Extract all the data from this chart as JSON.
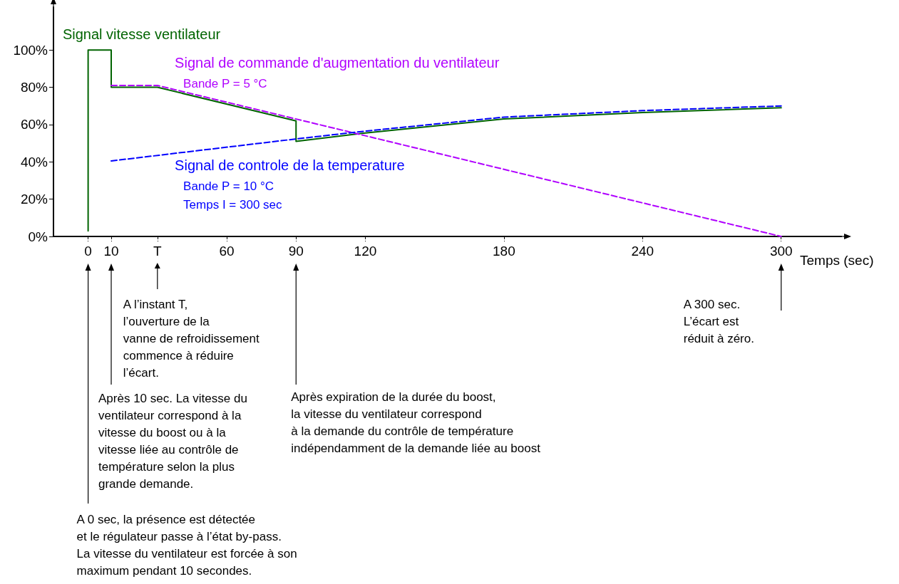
{
  "chart_data": {
    "type": "line",
    "x": [
      0,
      0,
      10,
      10,
      30,
      90,
      90,
      120,
      180,
      240,
      300
    ],
    "series": [
      {
        "name": "Signal vitesse ventilateur",
        "color": "#006400",
        "line_style": "solid",
        "values": [
          3,
          100,
          100,
          80,
          80,
          62,
          51,
          55.5,
          63,
          66.5,
          69
        ]
      },
      {
        "name": "Signal de commande d'augmentation du ventilateur\nBande P = 5 °C",
        "color": "#b000ff",
        "line_style": "dashed",
        "x": [
          10,
          30,
          300
        ],
        "values": [
          81,
          81,
          0
        ]
      },
      {
        "name": "Signal de controle de la temperature\nBande P = 10 °C\nTemps I = 300 sec",
        "color": "#0000ff",
        "line_style": "dashed",
        "x": [
          10,
          90,
          120,
          180,
          240,
          300
        ],
        "values": [
          40.5,
          52.3,
          56.5,
          64,
          67.5,
          70
        ]
      }
    ],
    "xlabel": "Temps (sec)",
    "xlim": [
      -15,
      326
    ],
    "ylim": [
      0,
      123
    ],
    "xticks": [
      0,
      10,
      {
        "value": 30,
        "label": "T"
      },
      60,
      90,
      120,
      180,
      240,
      300
    ],
    "yticks": [
      {
        "value": 0,
        "label": "0%"
      },
      {
        "value": 20,
        "label": "20%"
      },
      {
        "value": 40,
        "label": "40%"
      },
      {
        "value": 60,
        "label": "60%"
      },
      {
        "value": 80,
        "label": "80%"
      },
      {
        "value": 100,
        "label": "100%"
      }
    ],
    "annotations": [
      "A 0 sec, la présence est détectée\net le régulateur passe à l’état by-pass.\nLa vitesse du ventilateur est forcée à son\nmaximum pendant 10 secondes.",
      "Après 10 sec. La vitesse du\nventilateur correspond à la\nvitesse du boost ou à la\nvitesse liée au contrôle de\ntempérature selon la plus\ngrande demande.",
      "A l’instant T,\nl’ouverture de la\nvanne de refroidissement\ncommence à réduire\nl’écart.",
      "Après expiration de la durée du boost,\nla vitesse du ventilateur correspond\nà la demande du contrôle de température\nindépendamment de la demande liée au boost",
      "A 300 sec.\nL’écart est\nréduit à zéro."
    ],
    "grid": false,
    "legend": false,
    "marker": "none"
  }
}
